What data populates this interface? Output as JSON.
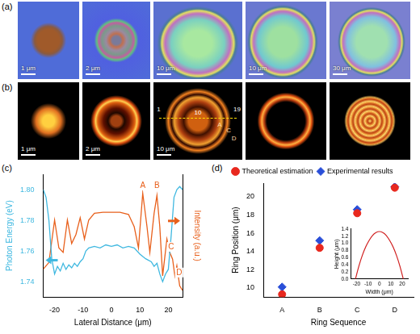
{
  "panel_labels": [
    "(a)",
    "(b)",
    "(c)",
    "(d)"
  ],
  "row_a": {
    "images": [
      {
        "scale_bar": "1 μm"
      },
      {
        "scale_bar": "2 μm"
      },
      {
        "scale_bar": "10 μm"
      },
      {
        "scale_bar": "10 μm"
      },
      {
        "scale_bar": "30 μm"
      }
    ]
  },
  "row_b": {
    "images": [
      {
        "scale_bar": "1 μm"
      },
      {
        "scale_bar": "2 μm"
      },
      {
        "scale_bar": "10 μm",
        "profile_labels": [
          "1",
          "10",
          "19"
        ],
        "ring_labels": [
          "A",
          "C",
          "D"
        ]
      },
      {},
      {}
    ]
  },
  "chart_data": [
    {
      "type": "line",
      "x_label": "Lateral Distance (μm)",
      "y_label": "Photon Energy (eV)",
      "y2_label": "Intensity (a.u.)",
      "xlim": [
        -24,
        25
      ],
      "xticks": [
        -20,
        -10,
        0,
        10,
        20
      ],
      "ylim": [
        1.73,
        1.81
      ],
      "yticks": [
        1.74,
        1.76,
        1.78,
        {
          "value": 1.8,
          "label": "1.80"
        }
      ],
      "y2lim": [
        0,
        1.1
      ],
      "y2ticks": [],
      "grid": false,
      "series": [
        {
          "color": "#3fb8e0",
          "x": [
            -24,
            -23,
            -22,
            -21,
            -20,
            -19,
            -18,
            -17,
            -16,
            -15,
            -14,
            -13,
            -12,
            -11,
            -10,
            -9,
            -8,
            -6,
            -4,
            -2,
            0,
            2,
            4,
            6,
            8,
            10,
            12,
            14,
            15,
            16,
            17,
            18,
            19,
            20,
            21,
            22,
            23,
            24,
            25
          ],
          "values": [
            1.8,
            1.795,
            1.78,
            1.755,
            1.745,
            1.75,
            1.747,
            1.752,
            1.748,
            1.751,
            1.749,
            1.752,
            1.75,
            1.753,
            1.755,
            1.76,
            1.762,
            1.763,
            1.762,
            1.764,
            1.763,
            1.764,
            1.762,
            1.763,
            1.762,
            1.758,
            1.755,
            1.753,
            1.75,
            1.752,
            1.745,
            1.74,
            1.745,
            1.748,
            1.77,
            1.795,
            1.8,
            1.802,
            1.8
          ]
        },
        {
          "color": "#e8601c",
          "axis": "y2",
          "x": [
            -24,
            -22,
            -20,
            -18.5,
            -17,
            -15.5,
            -14,
            -12.5,
            -11,
            -9.5,
            -8,
            -6,
            -3,
            0,
            3,
            6,
            8,
            9.5,
            11,
            12.5,
            13.5,
            15,
            16,
            17,
            18,
            19.5,
            20.5,
            21.5,
            22.3,
            23,
            24,
            25
          ],
          "values": [
            0.25,
            0.31,
            0.69,
            0.44,
            0.4,
            0.69,
            0.48,
            0.56,
            0.71,
            0.52,
            0.69,
            0.75,
            0.76,
            0.76,
            0.76,
            0.74,
            0.63,
            0.44,
            0.93,
            0.63,
            0.4,
            0.75,
            0.91,
            0.63,
            0.19,
            0.52,
            0.4,
            0.34,
            0.19,
            0.28,
            0.1,
            0.06
          ]
        }
      ],
      "annotations": [
        {
          "text": "A",
          "x": 11,
          "y": 1.0,
          "axis": "y2"
        },
        {
          "text": "B",
          "x": 16,
          "y": 1.0,
          "axis": "y2"
        },
        {
          "text": "C",
          "x": 21,
          "y": 0.45,
          "axis": "y2"
        },
        {
          "text": "D",
          "x": 23.8,
          "y": 0.22,
          "axis": "y2"
        }
      ]
    },
    {
      "type": "scatter",
      "x_label": "Ring Sequence",
      "y_label": "Ring Position (μm)",
      "categories": [
        "A",
        "B",
        "C",
        "D"
      ],
      "ylim": [
        9,
        21.5
      ],
      "yticks": [
        10,
        12,
        14,
        16,
        18,
        20
      ],
      "grid": false,
      "legend": "upper left",
      "series": [
        {
          "name": "Theoretical estimation",
          "color": "#e8281e",
          "marker": "circle",
          "values": [
            9.3,
            14.4,
            18.2,
            21.0
          ]
        },
        {
          "name": "Experimental results",
          "color": "#2a4fd8",
          "marker": "diamond",
          "values": [
            10.1,
            15.2,
            18.6,
            21.1
          ]
        }
      ]
    },
    {
      "type": "line",
      "x_label": "Width (μm)",
      "y_label": "Height (μm)",
      "xlim": [
        -25,
        25
      ],
      "xticks": [
        -20,
        -10,
        0,
        10,
        20
      ],
      "ylim": [
        0,
        1.4
      ],
      "yticks": [
        {
          "value": 0,
          "label": "0.0"
        },
        0.2,
        0.4,
        0.6,
        0.8,
        {
          "value": 1,
          "label": "1.0"
        },
        1.2,
        1.4
      ],
      "grid": false,
      "series": [
        {
          "color": "#d02020",
          "x": [
            -21,
            -18,
            -15,
            -12,
            -9,
            -6,
            -3,
            0,
            3,
            6,
            9,
            12,
            15,
            18,
            21
          ],
          "values": [
            0,
            0.36,
            0.66,
            0.9,
            1.08,
            1.22,
            1.3,
            1.33,
            1.3,
            1.22,
            1.08,
            0.9,
            0.66,
            0.36,
            0
          ]
        }
      ]
    }
  ]
}
